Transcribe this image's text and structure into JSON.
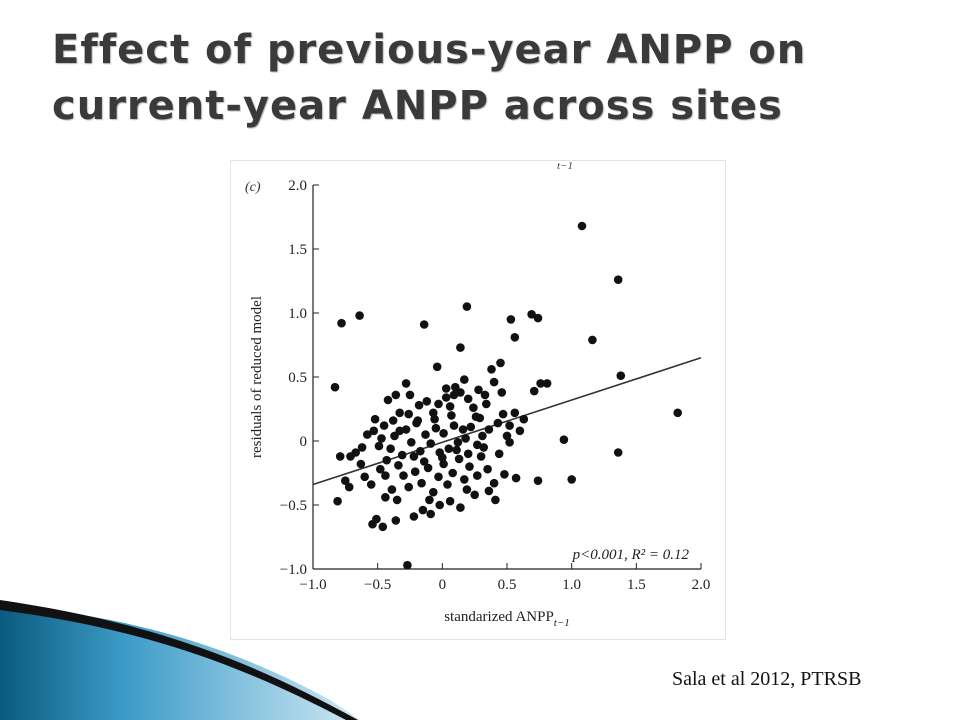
{
  "slide": {
    "title_line1": "Effect of previous-year ANPP on",
    "title_line2": "current-year ANPP across sites",
    "citation": "Sala et al 2012, PTRSB"
  },
  "colors": {
    "title": "#3a3a3a",
    "points": "#111111",
    "line": "#333333",
    "accent_dark": "#0a4e6e",
    "accent_light": "#5fb6dc"
  },
  "chart_data": {
    "type": "scatter",
    "panel_label": "(c)",
    "top_cropped_label": "t−1",
    "xlabel": "standarized ANPP",
    "xlabel_subscript": "t−1",
    "ylabel": "residuals of reduced model",
    "xlim": [
      -1.0,
      2.0
    ],
    "ylim": [
      -1.0,
      2.0
    ],
    "xticks": [
      "−1.0",
      "−0.5",
      "0",
      "0.5",
      "1.0",
      "1.5",
      "2.0"
    ],
    "yticks": [
      "−1.0",
      "−0.5",
      "0",
      "0.5",
      "1.0",
      "1.5",
      "2.0"
    ],
    "annotation": "p<0.001, R² = 0.12",
    "fit_line": {
      "x": [
        -1.0,
        2.0
      ],
      "y": [
        -0.34,
        0.65
      ]
    },
    "points": [
      [
        1.08,
        1.68
      ],
      [
        1.36,
        1.26
      ],
      [
        0.19,
        1.05
      ],
      [
        -0.14,
        0.91
      ],
      [
        -0.78,
        0.92
      ],
      [
        -0.64,
        0.98
      ],
      [
        0.69,
        0.99
      ],
      [
        0.74,
        0.96
      ],
      [
        1.16,
        0.79
      ],
      [
        0.56,
        0.81
      ],
      [
        0.53,
        0.95
      ],
      [
        -0.04,
        0.58
      ],
      [
        0.14,
        0.73
      ],
      [
        -0.83,
        0.42
      ],
      [
        1.38,
        0.51
      ],
      [
        1.82,
        0.22
      ],
      [
        1.36,
        -0.09
      ],
      [
        0.94,
        0.01
      ],
      [
        1.0,
        -0.3
      ],
      [
        0.76,
        0.45
      ],
      [
        0.81,
        0.45
      ],
      [
        0.71,
        0.39
      ],
      [
        0.63,
        0.17
      ],
      [
        0.74,
        -0.31
      ],
      [
        0.52,
        -0.01
      ],
      [
        0.48,
        -0.26
      ],
      [
        0.36,
        -0.39
      ],
      [
        -0.36,
        -0.62
      ],
      [
        -0.46,
        -0.67
      ],
      [
        -0.22,
        -0.59
      ],
      [
        -0.51,
        -0.61
      ],
      [
        -0.54,
        -0.65
      ],
      [
        -0.27,
        -0.97
      ],
      [
        -0.81,
        -0.47
      ],
      [
        -0.75,
        -0.31
      ],
      [
        -0.71,
        -0.12
      ],
      [
        -0.79,
        -0.12
      ],
      [
        -0.63,
        -0.18
      ],
      [
        -0.55,
        -0.34
      ],
      [
        -0.44,
        -0.27
      ],
      [
        -0.35,
        -0.46
      ],
      [
        -0.34,
        -0.19
      ],
      [
        -0.33,
        0.08
      ],
      [
        -0.47,
        0.02
      ],
      [
        -0.52,
        0.17
      ],
      [
        -0.42,
        0.32
      ],
      [
        -0.28,
        0.45
      ],
      [
        -0.25,
        0.36
      ],
      [
        -0.18,
        0.28
      ],
      [
        -0.12,
        0.31
      ],
      [
        -0.07,
        0.22
      ],
      [
        -0.03,
        0.29
      ],
      [
        0.03,
        0.34
      ],
      [
        0.06,
        0.27
      ],
      [
        0.1,
        0.42
      ],
      [
        0.14,
        0.38
      ],
      [
        0.2,
        0.33
      ],
      [
        0.24,
        0.26
      ],
      [
        0.29,
        0.18
      ],
      [
        0.34,
        0.29
      ],
      [
        0.38,
        0.56
      ],
      [
        0.45,
        0.61
      ],
      [
        0.4,
        0.46
      ],
      [
        0.46,
        0.38
      ],
      [
        0.43,
        0.14
      ],
      [
        0.36,
        0.09
      ],
      [
        0.31,
        0.04
      ],
      [
        0.27,
        -0.03
      ],
      [
        0.22,
        0.11
      ],
      [
        0.18,
        0.02
      ],
      [
        0.12,
        -0.01
      ],
      [
        0.09,
        0.12
      ],
      [
        0.05,
        -0.06
      ],
      [
        0.01,
        0.06
      ],
      [
        -0.02,
        -0.09
      ],
      [
        -0.05,
        0.1
      ],
      [
        -0.09,
        -0.02
      ],
      [
        -0.13,
        0.05
      ],
      [
        -0.17,
        -0.08
      ],
      [
        -0.2,
        0.14
      ],
      [
        -0.24,
        -0.01
      ],
      [
        -0.28,
        0.09
      ],
      [
        -0.31,
        -0.11
      ],
      [
        -0.37,
        0.04
      ],
      [
        -0.4,
        -0.06
      ],
      [
        -0.45,
        0.12
      ],
      [
        -0.49,
        -0.04
      ],
      [
        -0.58,
        0.05
      ],
      [
        -0.62,
        -0.05
      ],
      [
        -0.3,
        -0.27
      ],
      [
        -0.26,
        -0.36
      ],
      [
        -0.21,
        -0.24
      ],
      [
        -0.16,
        -0.33
      ],
      [
        -0.11,
        -0.21
      ],
      [
        -0.07,
        -0.4
      ],
      [
        -0.03,
        -0.28
      ],
      [
        0.01,
        -0.18
      ],
      [
        0.04,
        -0.34
      ],
      [
        0.08,
        -0.25
      ],
      [
        0.13,
        -0.14
      ],
      [
        0.17,
        -0.3
      ],
      [
        0.21,
        -0.2
      ],
      [
        0.25,
        -0.42
      ],
      [
        0.3,
        -0.12
      ],
      [
        0.35,
        -0.22
      ],
      [
        0.4,
        -0.33
      ],
      [
        0.44,
        -0.1
      ],
      [
        0.5,
        0.04
      ],
      [
        0.56,
        0.22
      ],
      [
        0.6,
        0.08
      ],
      [
        -0.15,
        -0.54
      ],
      [
        -0.09,
        -0.57
      ],
      [
        -0.02,
        -0.5
      ],
      [
        0.06,
        -0.47
      ],
      [
        0.14,
        -0.52
      ],
      [
        -0.19,
        0.16
      ],
      [
        -0.14,
        -0.16
      ],
      [
        -0.06,
        0.17
      ],
      [
        0.0,
        -0.13
      ],
      [
        0.07,
        0.2
      ],
      [
        0.11,
        -0.07
      ],
      [
        0.16,
        0.09
      ],
      [
        0.2,
        -0.1
      ],
      [
        0.26,
        0.19
      ],
      [
        0.32,
        -0.05
      ],
      [
        -0.33,
        0.22
      ],
      [
        -0.38,
        0.16
      ],
      [
        -0.43,
        -0.15
      ],
      [
        -0.48,
        -0.22
      ],
      [
        -0.53,
        0.08
      ],
      [
        -0.6,
        -0.28
      ],
      [
        -0.67,
        -0.09
      ],
      [
        -0.72,
        -0.36
      ],
      [
        -0.26,
        0.21
      ],
      [
        -0.22,
        -0.12
      ],
      [
        0.03,
        0.41
      ],
      [
        0.09,
        0.36
      ],
      [
        0.17,
        0.48
      ],
      [
        0.28,
        0.4
      ],
      [
        0.33,
        0.36
      ],
      [
        -0.1,
        -0.46
      ],
      [
        0.19,
        -0.38
      ],
      [
        0.27,
        -0.27
      ],
      [
        0.41,
        -0.46
      ],
      [
        0.57,
        -0.29
      ],
      [
        -0.39,
        -0.38
      ],
      [
        -0.44,
        -0.44
      ],
      [
        -0.36,
        0.36
      ],
      [
        0.47,
        0.21
      ],
      [
        0.52,
        0.12
      ]
    ]
  }
}
